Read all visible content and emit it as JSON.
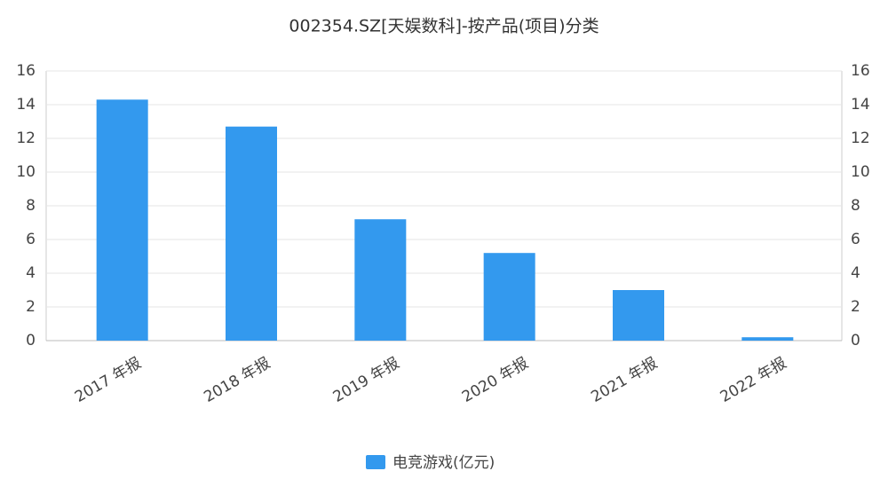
{
  "chart_data": {
    "type": "bar",
    "title": "002354.SZ[天娱数科]-按产品(项目)分类",
    "categories": [
      "2017 年报",
      "2018 年报",
      "2019 年报",
      "2020 年报",
      "2021 年报",
      "2022 年报"
    ],
    "series": [
      {
        "name": "电竞游戏(亿元)",
        "color": "#3399ee",
        "values": [
          14.3,
          12.7,
          7.2,
          5.2,
          3.0,
          0.2
        ]
      }
    ],
    "ylim": [
      0,
      16
    ],
    "yticks": [
      0,
      2,
      4,
      6,
      8,
      10,
      12,
      14,
      16
    ],
    "y2lim": [
      0,
      16
    ],
    "y2ticks": [
      0,
      2,
      4,
      6,
      8,
      10,
      12,
      14,
      16
    ],
    "grid": true,
    "legend": "bottom"
  }
}
